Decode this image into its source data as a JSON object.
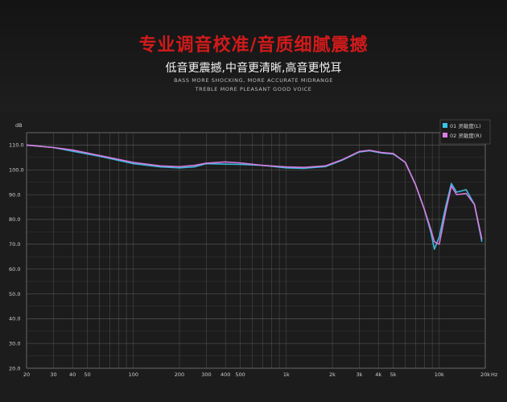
{
  "header": {
    "title": "专业调音校准/音质细腻震撼",
    "subtitle": "低音更震撼,中音更清晰,高音更悦耳",
    "english_line1": "BASS MORE SHOCKING, MORE ACCURATE MIDRANGE",
    "english_line2": "TREBLE MORE PLEASANT GOOD VOICE"
  },
  "colors": {
    "title": "#d11a1a",
    "series_left": "#39c3e6",
    "series_right": "#e07ce6",
    "grid": "#6a6a6a",
    "background": "#1c1c1c"
  },
  "chart_data": {
    "type": "line",
    "title": "",
    "xlabel": "Hz",
    "ylabel": "dB",
    "x_scale": "log",
    "xlim": [
      20,
      20000
    ],
    "ylim": [
      20,
      115
    ],
    "x_ticks": [
      {
        "value": 20,
        "label": "20"
      },
      {
        "value": 30,
        "label": "30"
      },
      {
        "value": 40,
        "label": "40"
      },
      {
        "value": 50,
        "label": "50"
      },
      {
        "value": 100,
        "label": "100"
      },
      {
        "value": 200,
        "label": "200"
      },
      {
        "value": 300,
        "label": "300"
      },
      {
        "value": 400,
        "label": "400"
      },
      {
        "value": 500,
        "label": "500"
      },
      {
        "value": 1000,
        "label": "1k"
      },
      {
        "value": 2000,
        "label": "2k"
      },
      {
        "value": 3000,
        "label": "3k"
      },
      {
        "value": 4000,
        "label": "4k"
      },
      {
        "value": 5000,
        "label": "5k"
      },
      {
        "value": 10000,
        "label": "10k"
      },
      {
        "value": 20000,
        "label": "20k"
      }
    ],
    "y_ticks": [
      {
        "value": 20,
        "label": "20.0"
      },
      {
        "value": 30,
        "label": "30.0"
      },
      {
        "value": 40,
        "label": "40.0"
      },
      {
        "value": 50,
        "label": "50.0"
      },
      {
        "value": 60,
        "label": "60.0"
      },
      {
        "value": 70,
        "label": "70.0"
      },
      {
        "value": 80,
        "label": "80.0"
      },
      {
        "value": 90,
        "label": "90.0"
      },
      {
        "value": 100,
        "label": "100.0"
      },
      {
        "value": 110,
        "label": "110.0"
      }
    ],
    "grid": true,
    "legend_position": "top-right",
    "series": [
      {
        "name": "01 灵敏度(L)",
        "color": "#39c3e6",
        "points": [
          [
            20,
            110
          ],
          [
            30,
            109
          ],
          [
            40,
            107.5
          ],
          [
            60,
            105.5
          ],
          [
            100,
            102.5
          ],
          [
            150,
            101.2
          ],
          [
            200,
            100.8
          ],
          [
            250,
            101.2
          ],
          [
            300,
            102.5
          ],
          [
            400,
            102.3
          ],
          [
            500,
            102.2
          ],
          [
            700,
            101.8
          ],
          [
            1000,
            100.8
          ],
          [
            1300,
            100.6
          ],
          [
            1800,
            101.3
          ],
          [
            2300,
            103.8
          ],
          [
            3000,
            107.2
          ],
          [
            3500,
            107.7
          ],
          [
            4200,
            106.8
          ],
          [
            5000,
            106.4
          ],
          [
            6000,
            103
          ],
          [
            7000,
            94
          ],
          [
            8000,
            84
          ],
          [
            8800,
            75
          ],
          [
            9300,
            68
          ],
          [
            10000,
            73
          ],
          [
            11000,
            85
          ],
          [
            12000,
            94.5
          ],
          [
            13000,
            91
          ],
          [
            15000,
            92
          ],
          [
            17000,
            86
          ],
          [
            19000,
            71
          ]
        ]
      },
      {
        "name": "02 灵敏度(R)",
        "color": "#e07ce6",
        "points": [
          [
            20,
            110
          ],
          [
            30,
            109
          ],
          [
            40,
            108
          ],
          [
            60,
            105.8
          ],
          [
            100,
            103
          ],
          [
            150,
            101.6
          ],
          [
            200,
            101.3
          ],
          [
            250,
            101.8
          ],
          [
            300,
            102.7
          ],
          [
            400,
            103.2
          ],
          [
            500,
            102.8
          ],
          [
            700,
            101.8
          ],
          [
            1000,
            101.2
          ],
          [
            1300,
            101
          ],
          [
            1800,
            101.6
          ],
          [
            2300,
            104
          ],
          [
            3000,
            107.4
          ],
          [
            3500,
            107.9
          ],
          [
            4200,
            107
          ],
          [
            5000,
            106.6
          ],
          [
            6000,
            103
          ],
          [
            7000,
            94
          ],
          [
            8000,
            84
          ],
          [
            8800,
            76
          ],
          [
            9300,
            71
          ],
          [
            10000,
            70
          ],
          [
            11000,
            83
          ],
          [
            12000,
            93.5
          ],
          [
            13000,
            90
          ],
          [
            15000,
            90.5
          ],
          [
            17000,
            86
          ],
          [
            19000,
            72
          ]
        ]
      }
    ]
  }
}
